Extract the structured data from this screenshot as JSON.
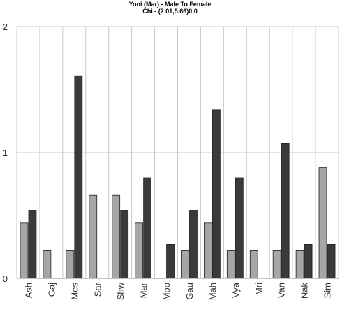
{
  "chart_data": {
    "type": "bar",
    "title": "Yoni (Mar) - Male To Female",
    "subtitle": "Chi - (2.01,5.66)0,0",
    "xlabel": "",
    "ylabel": "",
    "ylim": [
      0,
      2
    ],
    "yticks": [
      "0",
      "1",
      "2"
    ],
    "grid": true,
    "categories": [
      "Ash",
      "Gaj",
      "Mes",
      "Sar",
      "Shw",
      "Mar",
      "Moo",
      "Gau",
      "Mah",
      "Vya",
      "Mri",
      "Van",
      "Nak",
      "Sim"
    ],
    "series": [
      {
        "color": "#a6a6a6",
        "values": [
          0.44,
          0.22,
          0.22,
          0.66,
          0.66,
          0.44,
          0.0,
          0.22,
          0.44,
          0.22,
          0.22,
          0.22,
          0.22,
          0.88
        ]
      },
      {
        "color": "#3a3a3a",
        "values": [
          0.54,
          0.0,
          1.61,
          0.0,
          0.54,
          0.8,
          0.27,
          0.54,
          1.34,
          0.8,
          0.0,
          1.07,
          0.27,
          0.27
        ]
      }
    ]
  },
  "colors": {
    "grid": "#c8c8c8",
    "axis": "#888888",
    "bar_border": "#222222"
  }
}
